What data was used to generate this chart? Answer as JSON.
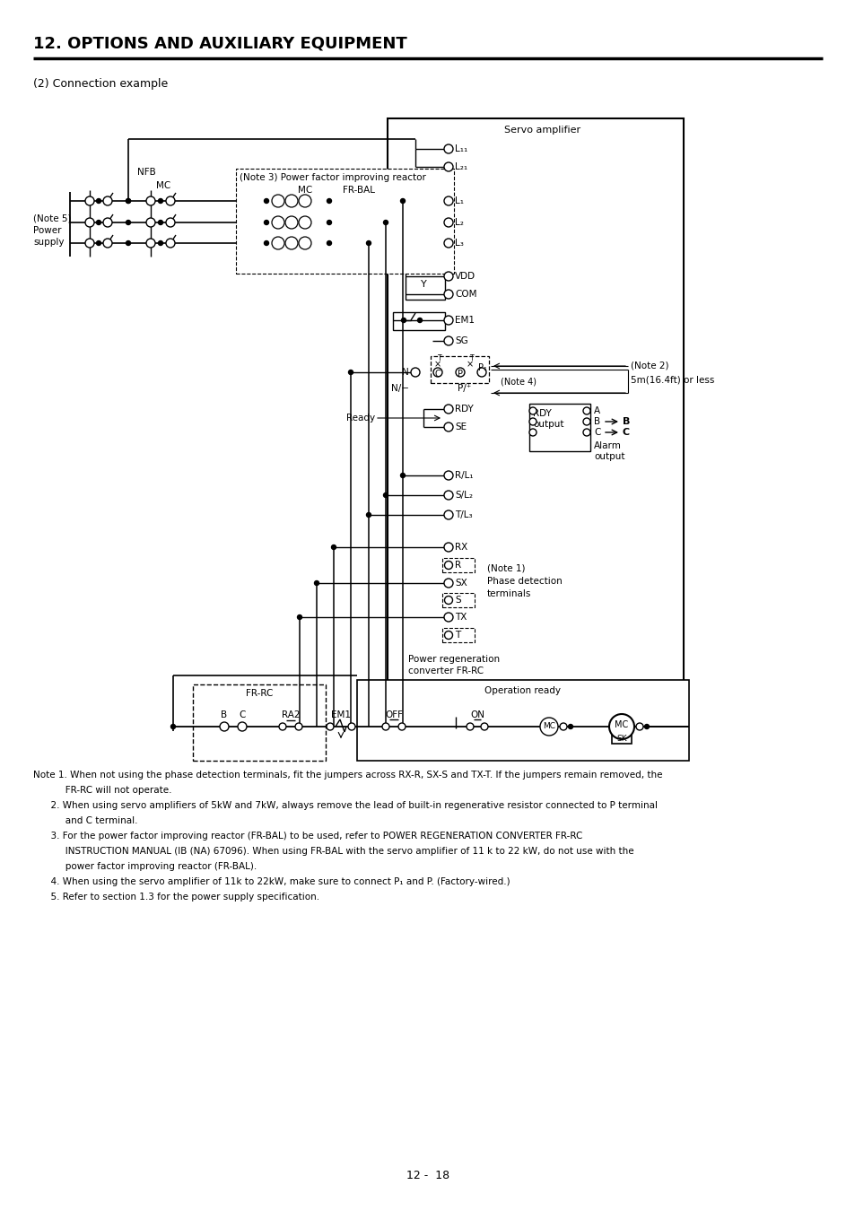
{
  "title": "12. OPTIONS AND AUXILIARY EQUIPMENT",
  "subtitle": "(2) Connection example",
  "page_number": "12 -  18",
  "notes": [
    "Note 1. When not using the phase detection terminals, fit the jumpers across RX-R, SX-S and TX-T. If the jumpers remain removed, the",
    "           FR-RC will not operate.",
    "      2. When using servo amplifiers of 5kW and 7kW, always remove the lead of built-in regenerative resistor connected to P terminal",
    "           and C terminal.",
    "      3. For the power factor improving reactor (FR-BAL) to be used, refer to POWER REGENERATION CONVERTER FR-RC",
    "           INSTRUCTION MANUAL (IB (NA) 67096). When using FR-BAL with the servo amplifier of 11 k to 22 kW, do not use with the",
    "           power factor improving reactor (FR-BAL).",
    "      4. When using the servo amplifier of 11k to 22kW, make sure to connect P₁ and P. (Factory-wired.)",
    "      5. Refer to section 1.3 for the power supply specification."
  ],
  "bg_color": "#ffffff",
  "line_color": "#000000"
}
